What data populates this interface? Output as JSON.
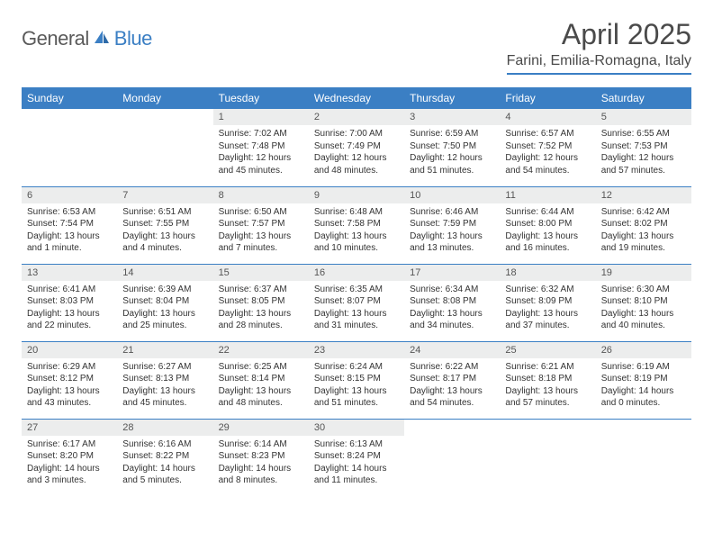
{
  "logo": {
    "text1": "General",
    "text2": "Blue",
    "icon_color": "#3b7fc4"
  },
  "title": "April 2025",
  "location": "Farini, Emilia-Romagna, Italy",
  "colors": {
    "header_bg": "#3b7fc4",
    "header_text": "#ffffff",
    "daynum_bg": "#eceded",
    "border": "#3b7fc4",
    "text": "#333333"
  },
  "weekdays": [
    "Sunday",
    "Monday",
    "Tuesday",
    "Wednesday",
    "Thursday",
    "Friday",
    "Saturday"
  ],
  "weeks": [
    [
      null,
      null,
      {
        "n": "1",
        "sr": "Sunrise: 7:02 AM",
        "ss": "Sunset: 7:48 PM",
        "dl": "Daylight: 12 hours and 45 minutes."
      },
      {
        "n": "2",
        "sr": "Sunrise: 7:00 AM",
        "ss": "Sunset: 7:49 PM",
        "dl": "Daylight: 12 hours and 48 minutes."
      },
      {
        "n": "3",
        "sr": "Sunrise: 6:59 AM",
        "ss": "Sunset: 7:50 PM",
        "dl": "Daylight: 12 hours and 51 minutes."
      },
      {
        "n": "4",
        "sr": "Sunrise: 6:57 AM",
        "ss": "Sunset: 7:52 PM",
        "dl": "Daylight: 12 hours and 54 minutes."
      },
      {
        "n": "5",
        "sr": "Sunrise: 6:55 AM",
        "ss": "Sunset: 7:53 PM",
        "dl": "Daylight: 12 hours and 57 minutes."
      }
    ],
    [
      {
        "n": "6",
        "sr": "Sunrise: 6:53 AM",
        "ss": "Sunset: 7:54 PM",
        "dl": "Daylight: 13 hours and 1 minute."
      },
      {
        "n": "7",
        "sr": "Sunrise: 6:51 AM",
        "ss": "Sunset: 7:55 PM",
        "dl": "Daylight: 13 hours and 4 minutes."
      },
      {
        "n": "8",
        "sr": "Sunrise: 6:50 AM",
        "ss": "Sunset: 7:57 PM",
        "dl": "Daylight: 13 hours and 7 minutes."
      },
      {
        "n": "9",
        "sr": "Sunrise: 6:48 AM",
        "ss": "Sunset: 7:58 PM",
        "dl": "Daylight: 13 hours and 10 minutes."
      },
      {
        "n": "10",
        "sr": "Sunrise: 6:46 AM",
        "ss": "Sunset: 7:59 PM",
        "dl": "Daylight: 13 hours and 13 minutes."
      },
      {
        "n": "11",
        "sr": "Sunrise: 6:44 AM",
        "ss": "Sunset: 8:00 PM",
        "dl": "Daylight: 13 hours and 16 minutes."
      },
      {
        "n": "12",
        "sr": "Sunrise: 6:42 AM",
        "ss": "Sunset: 8:02 PM",
        "dl": "Daylight: 13 hours and 19 minutes."
      }
    ],
    [
      {
        "n": "13",
        "sr": "Sunrise: 6:41 AM",
        "ss": "Sunset: 8:03 PM",
        "dl": "Daylight: 13 hours and 22 minutes."
      },
      {
        "n": "14",
        "sr": "Sunrise: 6:39 AM",
        "ss": "Sunset: 8:04 PM",
        "dl": "Daylight: 13 hours and 25 minutes."
      },
      {
        "n": "15",
        "sr": "Sunrise: 6:37 AM",
        "ss": "Sunset: 8:05 PM",
        "dl": "Daylight: 13 hours and 28 minutes."
      },
      {
        "n": "16",
        "sr": "Sunrise: 6:35 AM",
        "ss": "Sunset: 8:07 PM",
        "dl": "Daylight: 13 hours and 31 minutes."
      },
      {
        "n": "17",
        "sr": "Sunrise: 6:34 AM",
        "ss": "Sunset: 8:08 PM",
        "dl": "Daylight: 13 hours and 34 minutes."
      },
      {
        "n": "18",
        "sr": "Sunrise: 6:32 AM",
        "ss": "Sunset: 8:09 PM",
        "dl": "Daylight: 13 hours and 37 minutes."
      },
      {
        "n": "19",
        "sr": "Sunrise: 6:30 AM",
        "ss": "Sunset: 8:10 PM",
        "dl": "Daylight: 13 hours and 40 minutes."
      }
    ],
    [
      {
        "n": "20",
        "sr": "Sunrise: 6:29 AM",
        "ss": "Sunset: 8:12 PM",
        "dl": "Daylight: 13 hours and 43 minutes."
      },
      {
        "n": "21",
        "sr": "Sunrise: 6:27 AM",
        "ss": "Sunset: 8:13 PM",
        "dl": "Daylight: 13 hours and 45 minutes."
      },
      {
        "n": "22",
        "sr": "Sunrise: 6:25 AM",
        "ss": "Sunset: 8:14 PM",
        "dl": "Daylight: 13 hours and 48 minutes."
      },
      {
        "n": "23",
        "sr": "Sunrise: 6:24 AM",
        "ss": "Sunset: 8:15 PM",
        "dl": "Daylight: 13 hours and 51 minutes."
      },
      {
        "n": "24",
        "sr": "Sunrise: 6:22 AM",
        "ss": "Sunset: 8:17 PM",
        "dl": "Daylight: 13 hours and 54 minutes."
      },
      {
        "n": "25",
        "sr": "Sunrise: 6:21 AM",
        "ss": "Sunset: 8:18 PM",
        "dl": "Daylight: 13 hours and 57 minutes."
      },
      {
        "n": "26",
        "sr": "Sunrise: 6:19 AM",
        "ss": "Sunset: 8:19 PM",
        "dl": "Daylight: 14 hours and 0 minutes."
      }
    ],
    [
      {
        "n": "27",
        "sr": "Sunrise: 6:17 AM",
        "ss": "Sunset: 8:20 PM",
        "dl": "Daylight: 14 hours and 3 minutes."
      },
      {
        "n": "28",
        "sr": "Sunrise: 6:16 AM",
        "ss": "Sunset: 8:22 PM",
        "dl": "Daylight: 14 hours and 5 minutes."
      },
      {
        "n": "29",
        "sr": "Sunrise: 6:14 AM",
        "ss": "Sunset: 8:23 PM",
        "dl": "Daylight: 14 hours and 8 minutes."
      },
      {
        "n": "30",
        "sr": "Sunrise: 6:13 AM",
        "ss": "Sunset: 8:24 PM",
        "dl": "Daylight: 14 hours and 11 minutes."
      },
      null,
      null,
      null
    ]
  ]
}
